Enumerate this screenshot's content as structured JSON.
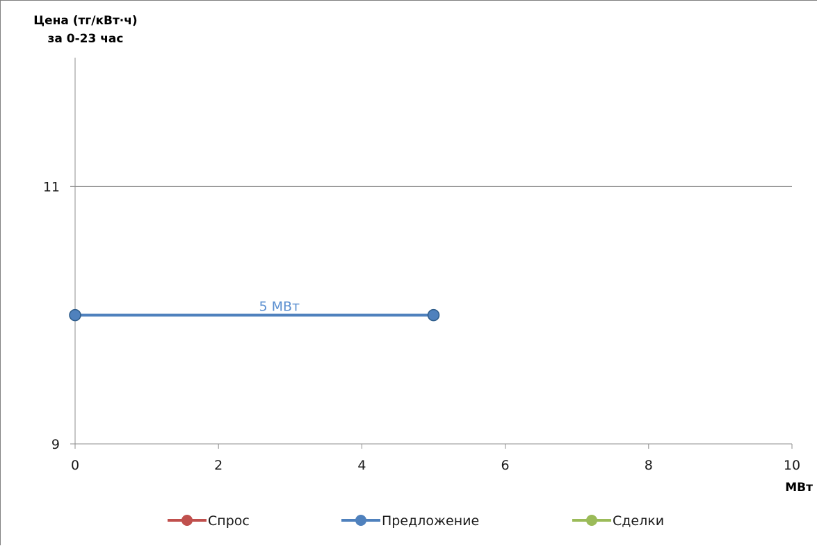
{
  "chart_data": {
    "type": "line",
    "ylabel": [
      "Цена (тг/кВт·ч)",
      "за 0-23 час"
    ],
    "xlabel": "МВт",
    "xlim": [
      0,
      10
    ],
    "ylim": [
      9,
      12
    ],
    "x_ticks": [
      0,
      2,
      4,
      6,
      8,
      10
    ],
    "y_ticks": [
      9,
      11
    ],
    "y_gridlines": [
      11
    ],
    "legend_position": "bottom",
    "series": [
      {
        "name": "Спрос",
        "color": "#c0504d",
        "points": []
      },
      {
        "name": "Предложение",
        "color": "#4f81bd",
        "points": [
          {
            "x": 0,
            "y": 10
          },
          {
            "x": 5,
            "y": 10
          }
        ],
        "data_label": {
          "text": "5 МВт",
          "x": 2.5,
          "y": 10
        }
      },
      {
        "name": "Сделки",
        "color": "#9bbb59",
        "points": []
      }
    ]
  }
}
